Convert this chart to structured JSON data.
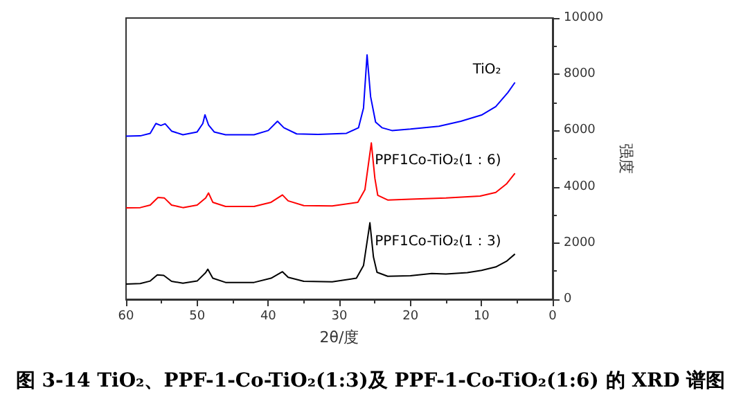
{
  "chart_data": {
    "type": "line",
    "title": "图 3-14 TiO₂、PPF-1-Co-TiO₂(1:3)及 PPF-1-Co-TiO₂(1:6) 的 XRD 谱图",
    "xlabel": "2θ/度",
    "ylabel": "强度",
    "xlim": [
      60,
      0
    ],
    "xticks": [
      60,
      50,
      40,
      30,
      20,
      10,
      0
    ],
    "ylim": [
      0,
      10000
    ],
    "yticks": [
      0,
      2000,
      4000,
      6000,
      8000,
      10000
    ],
    "grid": false,
    "marker": "none",
    "line_style": "solid",
    "series": [
      {
        "name": "TiO₂",
        "color": "#0000ff",
        "x": [
          60,
          58,
          56.6,
          55.8,
          55.1,
          54.5,
          53.6,
          52,
          50,
          49.2,
          48.9,
          48.4,
          47.6,
          46,
          42,
          40,
          38.7,
          37.8,
          36,
          33,
          29,
          27.3,
          26.6,
          26.1,
          25.6,
          24.9,
          24,
          22.6,
          20,
          16,
          12.9,
          10,
          8,
          6.3,
          5.3
        ],
        "values": [
          5800,
          5810,
          5900,
          6250,
          6180,
          6240,
          5980,
          5850,
          5950,
          6250,
          6560,
          6200,
          5950,
          5850,
          5850,
          6000,
          6330,
          6100,
          5880,
          5860,
          5900,
          6100,
          6800,
          8690,
          7200,
          6300,
          6100,
          6000,
          6050,
          6150,
          6330,
          6550,
          6850,
          7350,
          7710
        ]
      },
      {
        "name": "PPF1Co-TiO₂(1：6)",
        "color": "#ff0000",
        "x": [
          60,
          58,
          56.6,
          55.5,
          54.6,
          53.6,
          52,
          50,
          48.8,
          48.4,
          47.8,
          46,
          42,
          39.6,
          38.0,
          37.2,
          35,
          31,
          27.4,
          26.4,
          25.5,
          25,
          24.6,
          23.2,
          20,
          15,
          10.2,
          8,
          6.5,
          5.3
        ],
        "values": [
          3250,
          3260,
          3350,
          3620,
          3600,
          3350,
          3260,
          3350,
          3600,
          3780,
          3450,
          3300,
          3300,
          3450,
          3710,
          3500,
          3330,
          3320,
          3450,
          3900,
          5560,
          4300,
          3700,
          3530,
          3560,
          3600,
          3670,
          3800,
          4100,
          4480
        ]
      },
      {
        "name": "PPF1Co-TiO₂(1：3)",
        "color": "#000000",
        "x": [
          60,
          58,
          56.6,
          55.6,
          54.7,
          53.6,
          52,
          50,
          48.8,
          48.5,
          47.8,
          46,
          42,
          39.6,
          38.0,
          37.2,
          35,
          31,
          27.6,
          26.6,
          25.7,
          25.2,
          24.7,
          23.2,
          20,
          17,
          15,
          12,
          10,
          8,
          6.5,
          5.3
        ],
        "values": [
          540,
          560,
          650,
          870,
          850,
          640,
          570,
          650,
          950,
          1070,
          750,
          600,
          600,
          750,
          980,
          780,
          640,
          620,
          750,
          1200,
          2720,
          1500,
          960,
          820,
          840,
          920,
          900,
          950,
          1030,
          1150,
          1350,
          1610
        ]
      }
    ]
  }
}
